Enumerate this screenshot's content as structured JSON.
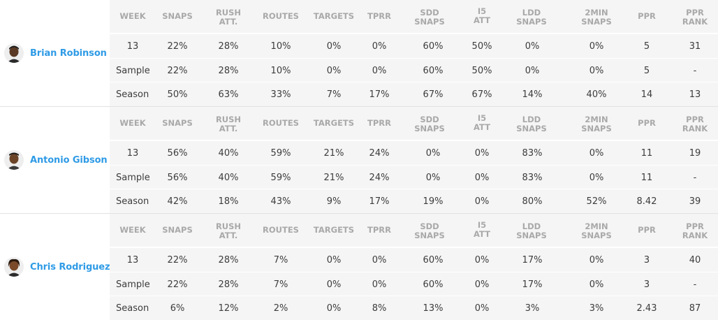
{
  "columns": [
    "WEEK",
    "SNAPS",
    "RUSH ATT.",
    "ROUTES",
    "TARGETS",
    "TPRR",
    "SDD SNAPS",
    "I5 ATT",
    "LDD SNAPS",
    "2MIN SNAPS",
    "PPR",
    "PPR RANK"
  ],
  "players": [
    {
      "name": "Brian Robinson",
      "rows": [
        [
          "13",
          "22%",
          "28%",
          "10%",
          "0%",
          "0%",
          "60%",
          "50%",
          "0%",
          "0%",
          "5",
          "31"
        ],
        [
          "Sample",
          "22%",
          "28%",
          "10%",
          "0%",
          "0%",
          "60%",
          "50%",
          "0%",
          "0%",
          "5",
          "-"
        ],
        [
          "Season",
          "50%",
          "63%",
          "33%",
          "7%",
          "17%",
          "67%",
          "67%",
          "14%",
          "40%",
          "14",
          "13"
        ]
      ]
    },
    {
      "name": "Antonio Gibson",
      "rows": [
        [
          "13",
          "56%",
          "40%",
          "59%",
          "21%",
          "24%",
          "0%",
          "0%",
          "83%",
          "0%",
          "11",
          "19"
        ],
        [
          "Sample",
          "56%",
          "40%",
          "59%",
          "21%",
          "24%",
          "0%",
          "0%",
          "83%",
          "0%",
          "11",
          "-"
        ],
        [
          "Season",
          "42%",
          "18%",
          "43%",
          "9%",
          "17%",
          "19%",
          "0%",
          "80%",
          "52%",
          "8.42",
          "39"
        ]
      ]
    },
    {
      "name": "Chris Rodriguez",
      "rows": [
        [
          "13",
          "22%",
          "28%",
          "7%",
          "0%",
          "0%",
          "60%",
          "0%",
          "17%",
          "0%",
          "3",
          "40"
        ],
        [
          "Sample",
          "22%",
          "28%",
          "7%",
          "0%",
          "0%",
          "60%",
          "0%",
          "17%",
          "0%",
          "3",
          "-"
        ],
        [
          "Season",
          "6%",
          "12%",
          "2%",
          "0%",
          "8%",
          "13%",
          "0%",
          "3%",
          "3%",
          "2.43",
          "87"
        ]
      ]
    }
  ],
  "colors": {
    "name": "#2f9be6",
    "header": "#a9a9a9",
    "row_bg": "#f5f5f5"
  }
}
